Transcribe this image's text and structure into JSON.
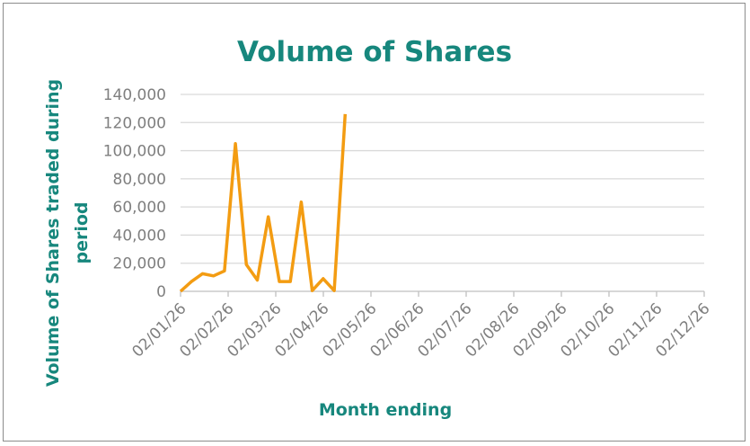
{
  "chart_data": {
    "type": "line",
    "title": "Volume of Shares",
    "xlabel": "Month ending",
    "ylabel_line1": "Volume of Shares traded during",
    "ylabel_line2": "period",
    "x_tick_labels": [
      "02/01/26",
      "02/02/26",
      "02/03/26",
      "02/04/26",
      "02/05/26",
      "02/06/26",
      "02/07/26",
      "02/08/26",
      "02/09/26",
      "02/10/26",
      "02/11/26",
      "02/12/26"
    ],
    "y_tick_labels": [
      "0",
      "20,000",
      "40,000",
      "60,000",
      "80,000",
      "100,000",
      "120,000",
      "140,000"
    ],
    "ylim": [
      0,
      140000
    ],
    "xlim": [
      "2026-01-02",
      "2026-12-02"
    ],
    "grid": true,
    "colors": {
      "line": "#f39c12",
      "title": "#17877d",
      "gridline": "#d9d9d9",
      "tick_text": "#7f7f7f"
    },
    "series": [
      {
        "points": [
          [
            "2026-01-02",
            0
          ],
          [
            "2026-01-09",
            7000
          ],
          [
            "2026-01-16",
            12500
          ],
          [
            "2026-01-23",
            11000
          ],
          [
            "2026-01-30",
            14500
          ],
          [
            "2026-02-06",
            105000
          ],
          [
            "2026-02-13",
            19000
          ],
          [
            "2026-02-20",
            8000
          ],
          [
            "2026-02-27",
            53000
          ],
          [
            "2026-03-06",
            7000
          ],
          [
            "2026-03-13",
            7000
          ],
          [
            "2026-03-20",
            63500
          ],
          [
            "2026-03-27",
            500
          ],
          [
            "2026-04-03",
            9000
          ],
          [
            "2026-04-10",
            500
          ],
          [
            "2026-04-17",
            126000
          ]
        ]
      }
    ]
  }
}
